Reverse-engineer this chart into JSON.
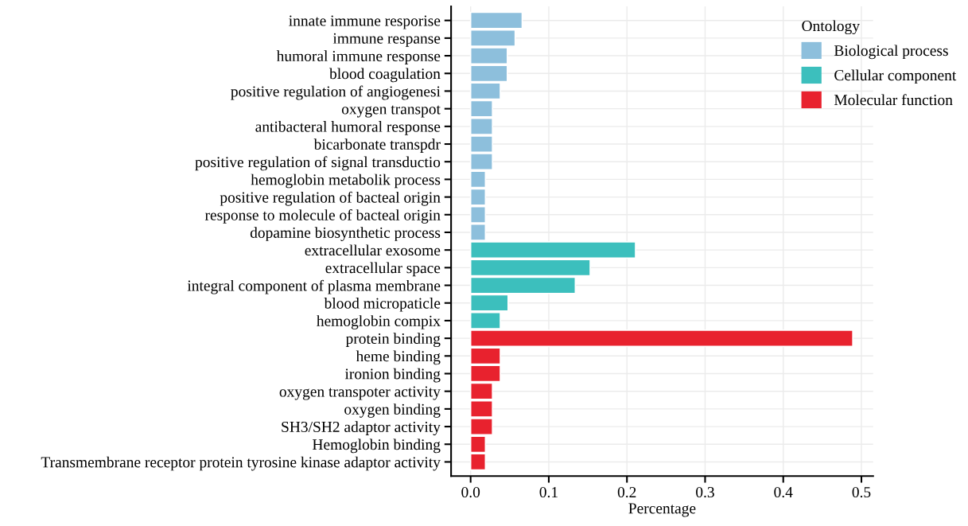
{
  "chart_data": {
    "type": "bar",
    "orientation": "horizontal",
    "xlabel": "Percentage",
    "legend_title": "Ontology",
    "legend": "top right",
    "grid": true,
    "categories": [
      "innate immune resporise",
      "immune respanse",
      "humoral immune response",
      "blood coagulation",
      "positive regulation of angiogenesi",
      "oxygen transpot",
      "antibacteral humoral response",
      "bicarbonate transpdr",
      "positive regulation of signal transductio",
      "hemoglobin metabolik process",
      "positive regulation of bacteal origin",
      "response to molecule of bacteal origin",
      "dopamine biosynthetic process",
      "extracellular exosome",
      "extracellular space",
      "integral component of plasma membrane",
      "blood micropaticle",
      "hemoglobin compix",
      "protein binding",
      "heme binding",
      "ironion binding",
      "oxygen transpoter activity",
      "oxygen binding",
      "SH3/SH2 adaptor activity",
      "Hemoglobin binding",
      "Transmembrane receptor protein tyrosine kinase adaptor activity"
    ],
    "series": [
      {
        "name": "Biological process",
        "color": "#8dbfdc",
        "values": [
          0.066,
          0.057,
          0.047,
          0.047,
          0.038,
          0.028,
          0.028,
          0.028,
          0.028,
          0.019,
          0.019,
          0.019,
          0.019,
          null,
          null,
          null,
          null,
          null,
          null,
          null,
          null,
          null,
          null,
          null,
          null,
          null
        ]
      },
      {
        "name": "Cellular component",
        "color": "#3cbfbd",
        "values": [
          null,
          null,
          null,
          null,
          null,
          null,
          null,
          null,
          null,
          null,
          null,
          null,
          null,
          0.211,
          0.153,
          0.134,
          0.048,
          0.038,
          null,
          null,
          null,
          null,
          null,
          null,
          null,
          null
        ]
      },
      {
        "name": "Molecular function",
        "color": "#e8222e",
        "values": [
          null,
          null,
          null,
          null,
          null,
          null,
          null,
          null,
          null,
          null,
          null,
          null,
          null,
          null,
          null,
          null,
          null,
          null,
          0.489,
          0.038,
          0.038,
          0.028,
          0.028,
          0.028,
          0.019,
          0.019
        ]
      }
    ],
    "xlim": [
      -0.025,
      0.515
    ],
    "xticks": [
      {
        "value": 0,
        "label": "0.0"
      },
      0.1,
      0.2,
      0.3,
      0.4,
      0.5
    ]
  }
}
